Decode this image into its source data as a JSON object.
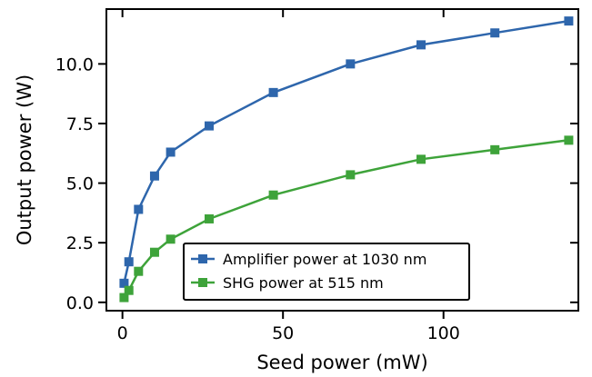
{
  "chart_data": {
    "type": "line",
    "xlabel": "Seed power (mW)",
    "ylabel": "Output power (W)",
    "xlim": [
      -5,
      142
    ],
    "ylim": [
      -0.35,
      12.3
    ],
    "xticks": [
      0,
      50,
      100
    ],
    "xtick_labels": [
      "0",
      "50",
      "100"
    ],
    "yticks": [
      0.0,
      2.5,
      5.0,
      7.5,
      10.0
    ],
    "ytick_labels": [
      "0.0",
      "2.5",
      "5.0",
      "7.5",
      "10.0"
    ],
    "grid": false,
    "legend_position": "lower-center",
    "series": [
      {
        "name": "Amplifier power at 1030 nm",
        "color": "#2e66ac",
        "marker": "square",
        "x": [
          0.5,
          2,
          5,
          10,
          15,
          27,
          47,
          71,
          93,
          116,
          139
        ],
        "y": [
          0.8,
          1.7,
          3.9,
          5.3,
          6.3,
          7.4,
          8.8,
          10.0,
          10.8,
          11.3,
          11.8
        ]
      },
      {
        "name": "SHG power at 515 nm",
        "color": "#3ea33a",
        "marker": "square",
        "x": [
          0.5,
          2,
          5,
          10,
          15,
          27,
          47,
          71,
          93,
          116,
          139
        ],
        "y": [
          0.2,
          0.5,
          1.3,
          2.1,
          2.65,
          3.5,
          4.5,
          5.35,
          6.0,
          6.4,
          6.8
        ]
      }
    ]
  }
}
